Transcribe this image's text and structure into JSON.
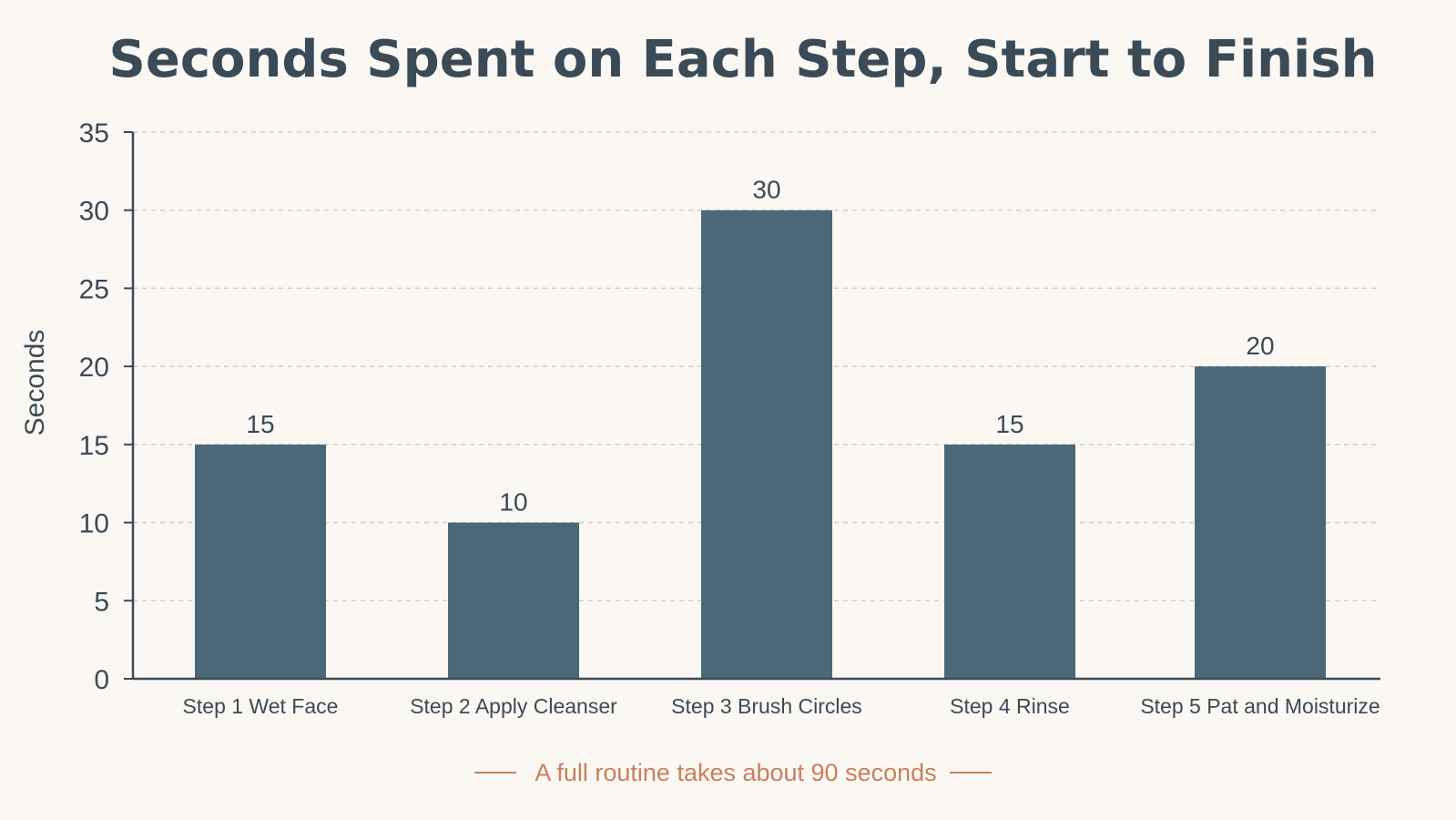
{
  "colors": {
    "background": "#fbf8f3",
    "bar": "#4b6878",
    "text": "#3a4a57",
    "grid": "#d2cfca",
    "axis": "#3a4a57",
    "note": "#c97f5a"
  },
  "chart_data": {
    "type": "bar",
    "title": "Seconds Spent on Each Step, Start to Finish",
    "xlabel": "",
    "ylabel": "Seconds",
    "categories": [
      "Step 1 Wet Face",
      "Step 2 Apply Cleanser",
      "Step 3 Brush Circles",
      "Step 4 Rinse",
      "Step 5 Pat and Moisturize"
    ],
    "values": [
      15,
      10,
      30,
      15,
      20
    ],
    "ylim": [
      0,
      35
    ],
    "yticks": [
      0,
      5,
      10,
      15,
      20,
      25,
      30,
      35
    ],
    "grid": true,
    "data_labels": true,
    "annotation": "A full routine takes about 90 seconds"
  }
}
